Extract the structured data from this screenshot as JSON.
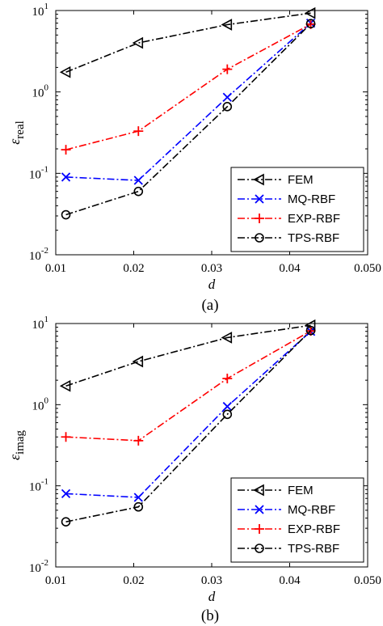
{
  "chart_data": [
    {
      "type": "line",
      "panel_label": "(a)",
      "xlabel": "d",
      "ylabel_main": "ε",
      "ylabel_sub": "real",
      "xscale": "linear",
      "yscale": "log",
      "xlim": [
        0.01,
        0.05
      ],
      "ylim": [
        0.01,
        10
      ],
      "xticks": [
        0.01,
        0.02,
        0.03,
        0.04,
        0.05
      ],
      "xtick_labels": [
        "0.01",
        "0.02",
        "0.03",
        "0.04",
        "0.050"
      ],
      "yticks": [
        0.01,
        0.1,
        1,
        10
      ],
      "ytick_labels": [
        {
          "base": "10",
          "exp": "-2"
        },
        {
          "base": "10",
          "exp": "-1"
        },
        {
          "base": "10",
          "exp": "0"
        },
        {
          "base": "10",
          "exp": "1"
        }
      ],
      "legend_position": "lower-right",
      "series": [
        {
          "name": "FEM",
          "color": "#000000",
          "marker": "triangle-left",
          "dash": "dashdot",
          "x": [
            0.0113,
            0.0206,
            0.032,
            0.0427
          ],
          "y": [
            1.75,
            4.0,
            6.7,
            9.3
          ]
        },
        {
          "name": "MQ-RBF",
          "color": "#0000ff",
          "marker": "x",
          "dash": "dashdot",
          "x": [
            0.0113,
            0.0206,
            0.032,
            0.0427
          ],
          "y": [
            0.09,
            0.082,
            0.86,
            7.0
          ]
        },
        {
          "name": "EXP-RBF",
          "color": "#ff0000",
          "marker": "plus",
          "dash": "dashdot",
          "x": [
            0.0113,
            0.0206,
            0.032,
            0.0427
          ],
          "y": [
            0.195,
            0.33,
            1.9,
            6.8
          ]
        },
        {
          "name": "TPS-RBF",
          "color": "#000000",
          "marker": "circle",
          "dash": "dashdot",
          "x": [
            0.0113,
            0.0206,
            0.032,
            0.0427
          ],
          "y": [
            0.031,
            0.06,
            0.66,
            6.9
          ]
        }
      ]
    },
    {
      "type": "line",
      "panel_label": "(b)",
      "xlabel": "d",
      "ylabel_main": "ε",
      "ylabel_sub": "imag",
      "xscale": "linear",
      "yscale": "log",
      "xlim": [
        0.01,
        0.05
      ],
      "ylim": [
        0.01,
        10
      ],
      "xticks": [
        0.01,
        0.02,
        0.03,
        0.04,
        0.05
      ],
      "xtick_labels": [
        "0.01",
        "0.02",
        "0.03",
        "0.04",
        "0.050"
      ],
      "yticks": [
        0.01,
        0.1,
        1,
        10
      ],
      "ytick_labels": [
        {
          "base": "10",
          "exp": "-2"
        },
        {
          "base": "10",
          "exp": "-1"
        },
        {
          "base": "10",
          "exp": "0"
        },
        {
          "base": "10",
          "exp": "1"
        }
      ],
      "legend_position": "lower-right",
      "series": [
        {
          "name": "FEM",
          "color": "#000000",
          "marker": "triangle-left",
          "dash": "dashdot",
          "x": [
            0.0113,
            0.0206,
            0.032,
            0.0427
          ],
          "y": [
            1.7,
            3.4,
            6.7,
            9.5
          ]
        },
        {
          "name": "MQ-RBF",
          "color": "#0000ff",
          "marker": "x",
          "dash": "dashdot",
          "x": [
            0.0113,
            0.0206,
            0.032,
            0.0427
          ],
          "y": [
            0.08,
            0.072,
            0.95,
            8.0
          ]
        },
        {
          "name": "EXP-RBF",
          "color": "#ff0000",
          "marker": "plus",
          "dash": "dashdot",
          "x": [
            0.0113,
            0.0206,
            0.032,
            0.0427
          ],
          "y": [
            0.4,
            0.36,
            2.1,
            8.1
          ]
        },
        {
          "name": "TPS-RBF",
          "color": "#000000",
          "marker": "circle",
          "dash": "dashdot",
          "x": [
            0.0113,
            0.0206,
            0.032,
            0.0427
          ],
          "y": [
            0.036,
            0.055,
            0.76,
            8.2
          ]
        }
      ]
    }
  ]
}
